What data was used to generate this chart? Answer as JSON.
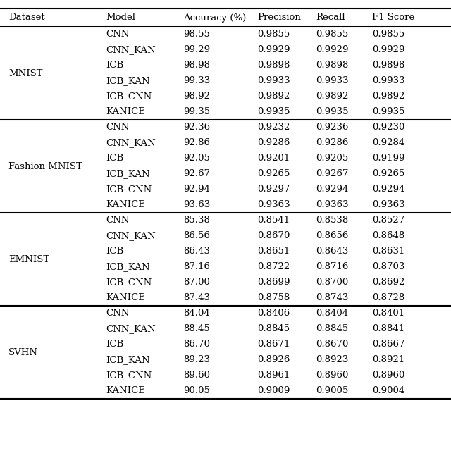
{
  "columns": [
    "Dataset",
    "Model",
    "Accuracy (%)",
    "Precision",
    "Recall",
    "F1 Score"
  ],
  "datasets": [
    {
      "name": "MNIST",
      "rows": [
        [
          "CNN",
          "98.55",
          "0.9855",
          "0.9855",
          "0.9855"
        ],
        [
          "CNN_KAN",
          "99.29",
          "0.9929",
          "0.9929",
          "0.9929"
        ],
        [
          "ICB",
          "98.98",
          "0.9898",
          "0.9898",
          "0.9898"
        ],
        [
          "ICB_KAN",
          "99.33",
          "0.9933",
          "0.9933",
          "0.9933"
        ],
        [
          "ICB_CNN",
          "98.92",
          "0.9892",
          "0.9892",
          "0.9892"
        ],
        [
          "KANICE",
          "99.35",
          "0.9935",
          "0.9935",
          "0.9935"
        ]
      ]
    },
    {
      "name": "Fashion MNIST",
      "rows": [
        [
          "CNN",
          "92.36",
          "0.9232",
          "0.9236",
          "0.9230"
        ],
        [
          "CNN_KAN",
          "92.86",
          "0.9286",
          "0.9286",
          "0.9284"
        ],
        [
          "ICB",
          "92.05",
          "0.9201",
          "0.9205",
          "0.9199"
        ],
        [
          "ICB_KAN",
          "92.67",
          "0.9265",
          "0.9267",
          "0.9265"
        ],
        [
          "ICB_CNN",
          "92.94",
          "0.9297",
          "0.9294",
          "0.9294"
        ],
        [
          "KANICE",
          "93.63",
          "0.9363",
          "0.9363",
          "0.9363"
        ]
      ]
    },
    {
      "name": "EMNIST",
      "rows": [
        [
          "CNN",
          "85.38",
          "0.8541",
          "0.8538",
          "0.8527"
        ],
        [
          "CNN_KAN",
          "86.56",
          "0.8670",
          "0.8656",
          "0.8648"
        ],
        [
          "ICB",
          "86.43",
          "0.8651",
          "0.8643",
          "0.8631"
        ],
        [
          "ICB_KAN",
          "87.16",
          "0.8722",
          "0.8716",
          "0.8703"
        ],
        [
          "ICB_CNN",
          "87.00",
          "0.8699",
          "0.8700",
          "0.8692"
        ],
        [
          "KANICE",
          "87.43",
          "0.8758",
          "0.8743",
          "0.8728"
        ]
      ]
    },
    {
      "name": "SVHN",
      "rows": [
        [
          "CNN",
          "84.04",
          "0.8406",
          "0.8404",
          "0.8401"
        ],
        [
          "CNN_KAN",
          "88.45",
          "0.8845",
          "0.8845",
          "0.8841"
        ],
        [
          "ICB",
          "86.70",
          "0.8671",
          "0.8670",
          "0.8667"
        ],
        [
          "ICB_KAN",
          "89.23",
          "0.8926",
          "0.8923",
          "0.8921"
        ],
        [
          "ICB_CNN",
          "89.60",
          "0.8961",
          "0.8960",
          "0.8960"
        ],
        [
          "KANICE",
          "90.05",
          "0.9009",
          "0.9005",
          "0.9004"
        ]
      ]
    }
  ],
  "col_headers": [
    "Dataset",
    "Model",
    "Accuracy (%)",
    "Precision",
    "Recall",
    "F1 Score"
  ],
  "bg_color": "#ffffff",
  "header_bg": "#ffffff",
  "line_color": "#000000",
  "text_color": "#000000",
  "font_size": 9.5,
  "header_font_size": 9.5
}
